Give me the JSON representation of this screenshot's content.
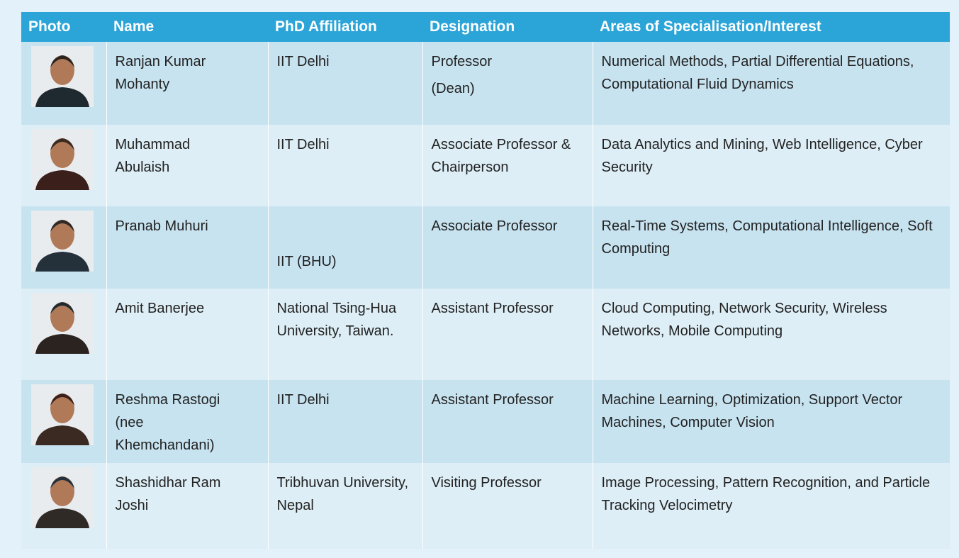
{
  "table": {
    "headers": [
      "Photo",
      "Name",
      "PhD Affiliation",
      "Designation",
      "Areas of Specialisation/Interest"
    ],
    "rows": [
      {
        "name": "Ranjan Kumar Mohanty",
        "phd": "IIT Delhi",
        "designation": [
          "Professor",
          "(Dean)"
        ],
        "areas": "Numerical Methods, Partial Differential Equations, Computational Fluid Dynamics"
      },
      {
        "name": "Muhammad Abulaish",
        "phd": "IIT Delhi",
        "designation": [
          "Associate Professor & Chairperson"
        ],
        "areas": "Data Analytics and Mining, Web Intelligence, Cyber Security"
      },
      {
        "name": "Pranab Muhuri",
        "phd": "IIT (BHU)",
        "designation": [
          "Associate Professor"
        ],
        "areas": "Real-Time Systems, Computational Intelligence, Soft Computing"
      },
      {
        "name": "Amit Banerjee",
        "phd": "National Tsing-Hua University, Taiwan.",
        "designation": [
          "Assistant  Professor"
        ],
        "areas": "Cloud Computing, Network Security, Wireless Networks, Mobile Computing"
      },
      {
        "name": "Reshma Rastogi (nee Khemchandani)",
        "phd": "IIT Delhi",
        "designation": [
          "Assistant Professor"
        ],
        "areas": "Machine Learning, Optimization, Support Vector Machines, Computer Vision"
      },
      {
        "name": "Shashidhar Ram Joshi",
        "phd": "Tribhuvan University, Nepal",
        "designation": [
          "Visiting Professor"
        ],
        "areas": "Image Processing, Pattern Recognition, and Particle Tracking Velocimetry"
      }
    ]
  }
}
